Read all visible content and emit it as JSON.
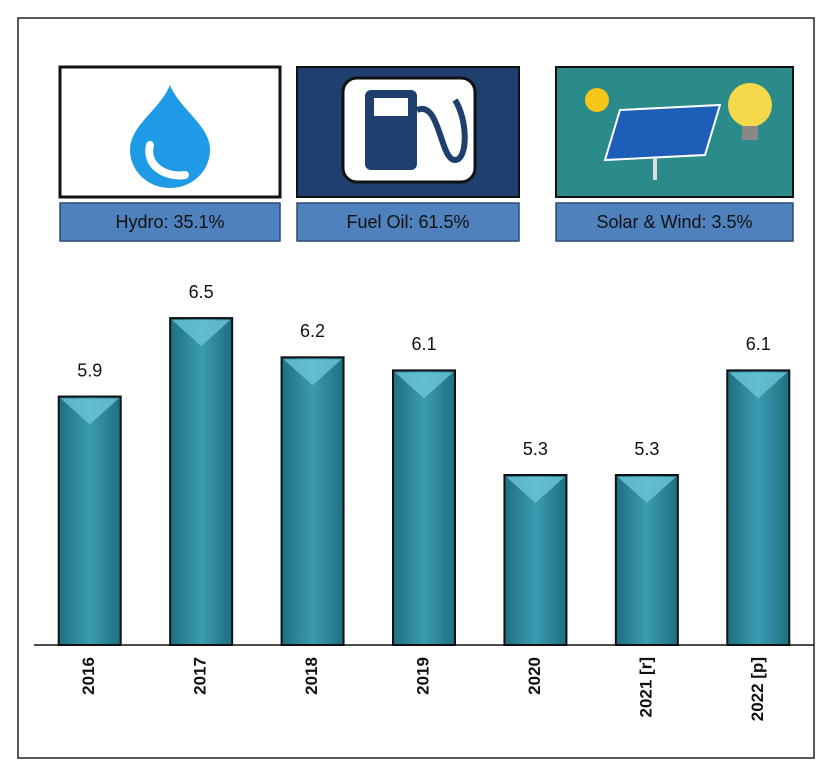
{
  "cards": [
    {
      "label": "Hydro: 35.1%"
    },
    {
      "label": "Fuel Oil: 61.5%"
    },
    {
      "label": "Solar & Wind: 3.5%"
    }
  ],
  "chart_data": {
    "type": "bar",
    "categories": [
      "2016",
      "2017",
      "2018",
      "2019",
      "2020",
      "2021 [r]",
      "2022 [p]"
    ],
    "values": [
      5.9,
      6.5,
      6.2,
      6.1,
      5.3,
      5.3,
      6.1
    ],
    "color": "#2f8ea3",
    "ylim": [
      4,
      6.6
    ]
  }
}
